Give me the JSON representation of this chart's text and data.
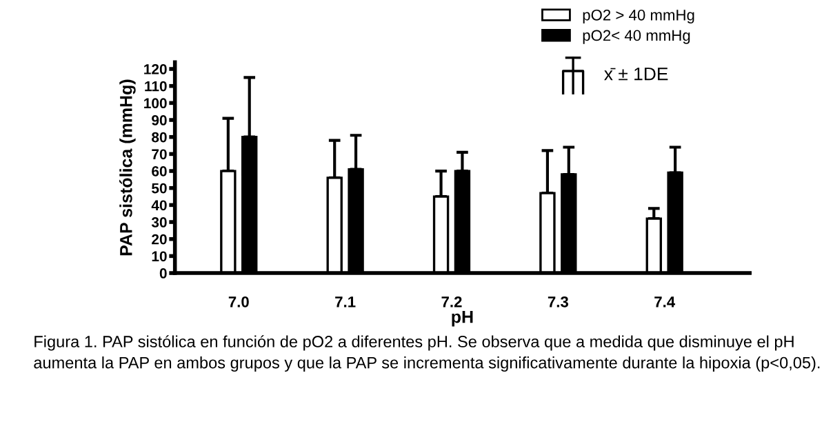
{
  "chart_data": {
    "type": "bar",
    "ylabel": "PAP sistólica (mmHg)",
    "xlabel": "pH",
    "categories": [
      "7.0",
      "7.1",
      "7.2",
      "7.3",
      "7.4"
    ],
    "series": [
      {
        "name": "pO2 > 40 mmHg",
        "color": "#ffffff",
        "values": [
          60,
          56,
          45,
          47,
          32
        ],
        "errors": [
          [
            60,
            91
          ],
          [
            56,
            78
          ],
          [
            45,
            60
          ],
          [
            47,
            72
          ],
          [
            32,
            38
          ]
        ]
      },
      {
        "name": "pO2< 40 mmHg",
        "color": "#000000",
        "values": [
          80,
          61,
          60,
          58,
          59
        ],
        "errors": [
          [
            80,
            115
          ],
          [
            61,
            81
          ],
          [
            60,
            71
          ],
          [
            58,
            74
          ],
          [
            59,
            74
          ]
        ]
      }
    ],
    "ylim": [
      0,
      124
    ],
    "yticks": [
      0,
      10,
      20,
      30,
      40,
      50,
      60,
      70,
      80,
      90,
      100,
      110,
      120
    ],
    "grid": false,
    "legend": "top right",
    "annotations": [
      "x̄ ± 1DE",
      "Figura 1. PAP sistólica en función de pO2 a diferentes pH. Se observa que a medida que disminuye el pH aumenta la PAP en ambos grupos y que la PAP se incrementa significativamente durante la hipoxia (p<0,05)."
    ]
  }
}
